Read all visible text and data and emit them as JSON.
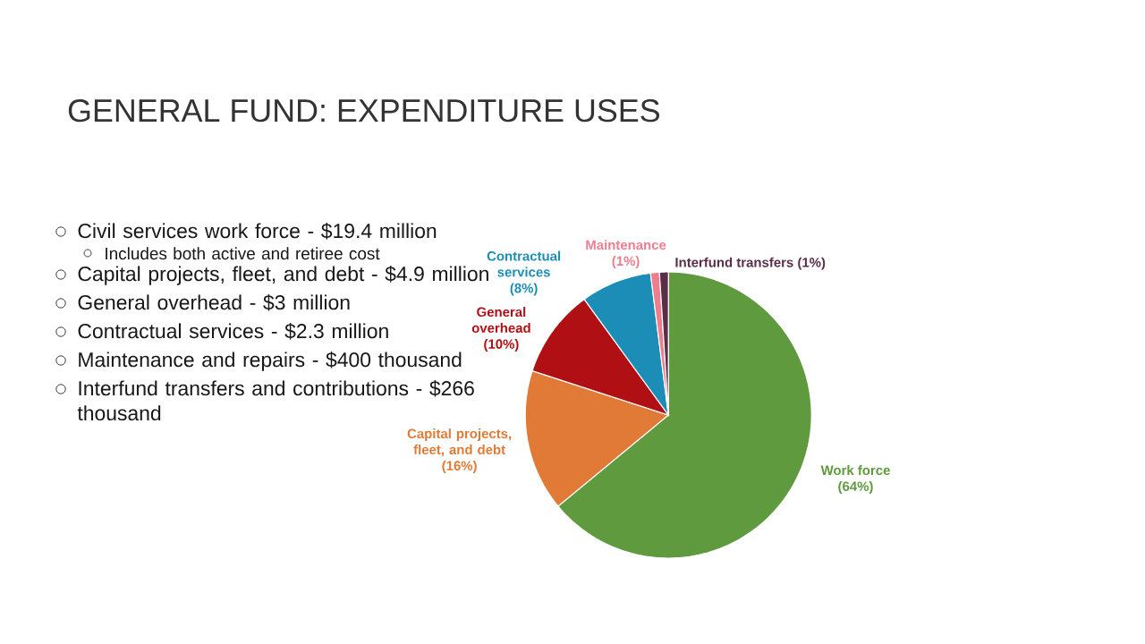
{
  "chart_data": {
    "type": "pie",
    "title": "GENERAL FUND: EXPENDITURE USES",
    "categories": [
      "Work force",
      "Capital projects, fleet, and debt",
      "General overhead",
      "Contractual services",
      "Maintenance",
      "Interfund transfers"
    ],
    "values": [
      64,
      16,
      10,
      8,
      1,
      1
    ],
    "value_labels": [
      "(64%)",
      "(16%)",
      "(10%)",
      "(8%)",
      "(1%)",
      "(1%)"
    ],
    "colors": [
      "#5f9a3f",
      "#e07a36",
      "#b00f14",
      "#1b8db6",
      "#f07d8e",
      "#5a2e48"
    ],
    "annotations": [
      "Civil services work force - $19.4 million",
      "Includes both active and retiree cost",
      "Capital projects, fleet, and debt - $4.9 million",
      "General overhead - $3 million",
      "Contractual services - $2.3 million",
      "Maintenance and repairs - $400 thousand",
      "Interfund transfers and contributions - $266 thousand"
    ]
  }
}
